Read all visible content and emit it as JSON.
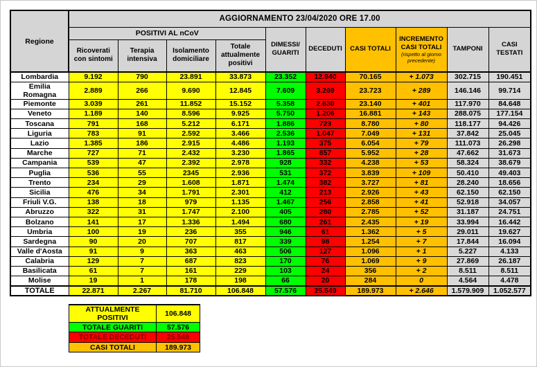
{
  "title": "AGGIORNAMENTO 23/04/2020 ORE 17.00",
  "columns": {
    "regione": "Regione",
    "positivi_group": "POSITIVI AL nCoV",
    "ricoverati": "Ricoverati con sintomi",
    "terapia": "Terapia intensiva",
    "isolamento": "Isolamento domiciliare",
    "totale_positivi": "Totale attualmente positivi",
    "dimessi": "DIMESSI/ GUARITI",
    "deceduti": "DECEDUTI",
    "casi_totali": "CASI TOTALI",
    "incremento": "INCREMENTO CASI  TOTALI",
    "incremento_note": "(rispetto al giorno precedente)",
    "tamponi": "TAMPONI",
    "casi_testati": "CASI TESTATI"
  },
  "rows": [
    [
      "Lombardia",
      "9.192",
      "790",
      "23.891",
      "33.873",
      "23.352",
      "12.940",
      "70.165",
      "+ 1.073",
      "302.715",
      "190.451"
    ],
    [
      "Emilia Romagna",
      "2.889",
      "266",
      "9.690",
      "12.845",
      "7.609",
      "3.269",
      "23.723",
      "+ 289",
      "146.146",
      "99.714"
    ],
    [
      "Piemonte",
      "3.039",
      "261",
      "11.852",
      "15.152",
      "5.358",
      "2.630",
      "23.140",
      "+ 401",
      "117.970",
      "84.648"
    ],
    [
      "Veneto",
      "1.189",
      "140",
      "8.596",
      "9.925",
      "5.750",
      "1.206",
      "16.881",
      "+ 143",
      "288.075",
      "177.154"
    ],
    [
      "Toscana",
      "791",
      "168",
      "5.212",
      "6.171",
      "1.886",
      "723",
      "8.780",
      "+ 80",
      "118.177",
      "94.426"
    ],
    [
      "Liguria",
      "783",
      "91",
      "2.592",
      "3.466",
      "2.536",
      "1.047",
      "7.049",
      "+ 131",
      "37.842",
      "25.045"
    ],
    [
      "Lazio",
      "1.385",
      "186",
      "2.915",
      "4.486",
      "1.193",
      "375",
      "6.054",
      "+ 79",
      "111.073",
      "26.298"
    ],
    [
      "Marche",
      "727",
      "71",
      "2.432",
      "3.230",
      "1.865",
      "857",
      "5.952",
      "+ 28",
      "47.662",
      "31.673"
    ],
    [
      "Campania",
      "539",
      "47",
      "2.392",
      "2.978",
      "928",
      "332",
      "4.238",
      "+ 53",
      "58.324",
      "38.679"
    ],
    [
      "Puglia",
      "536",
      "55",
      "2345",
      "2.936",
      "531",
      "372",
      "3.839",
      "+ 109",
      "50.410",
      "49.403"
    ],
    [
      "Trento",
      "234",
      "29",
      "1.608",
      "1.871",
      "1.474",
      "382",
      "3.727",
      "+ 81",
      "28.240",
      "18.656"
    ],
    [
      "Sicilia",
      "476",
      "34",
      "1.791",
      "2.301",
      "412",
      "213",
      "2.926",
      "+ 43",
      "62.150",
      "62.150"
    ],
    [
      "Friuli V.G.",
      "138",
      "18",
      "979",
      "1.135",
      "1.467",
      "256",
      "2.858",
      "+ 41",
      "52.918",
      "34.057"
    ],
    [
      "Abruzzo",
      "322",
      "31",
      "1.747",
      "2.100",
      "405",
      "280",
      "2.785",
      "+ 52",
      "31.187",
      "24.751"
    ],
    [
      "Bolzano",
      "141",
      "17",
      "1.336",
      "1.494",
      "680",
      "261",
      "2.435",
      "+ 19",
      "33.994",
      "16.442"
    ],
    [
      "Umbria",
      "100",
      "19",
      "236",
      "355",
      "946",
      "61",
      "1.362",
      "+ 5",
      "29.011",
      "19.627"
    ],
    [
      "Sardegna",
      "90",
      "20",
      "707",
      "817",
      "339",
      "98",
      "1.254",
      "+ 7",
      "17.844",
      "16.094"
    ],
    [
      "Valle d'Aosta",
      "91",
      "9",
      "363",
      "463",
      "506",
      "127",
      "1.096",
      "+ 1",
      "5.227",
      "4.133"
    ],
    [
      "Calabria",
      "129",
      "7",
      "687",
      "823",
      "170",
      "76",
      "1.069",
      "+ 9",
      "27.869",
      "26.187"
    ],
    [
      "Basilicata",
      "61",
      "7",
      "161",
      "229",
      "103",
      "24",
      "356",
      "+ 2",
      "8.511",
      "8.511"
    ],
    [
      "Molise",
      "19",
      "1",
      "178",
      "198",
      "66",
      "20",
      "284",
      "0",
      "4.564",
      "4.478"
    ]
  ],
  "totale": [
    "TOTALE",
    "22.871",
    "2.267",
    "81.710",
    "106.848",
    "57.576",
    "25.549",
    "189.973",
    "+ 2.646",
    "1.579.909",
    "1.052.577"
  ],
  "legend": [
    {
      "label": "ATTUALMENTE POSITIVI",
      "value": "106.848",
      "color": "#ffff00",
      "text_color": "#000000"
    },
    {
      "label": "TOTALE GUARITI",
      "value": "57.576",
      "color": "#00ff00",
      "text_color": "#000000"
    },
    {
      "label": "TOTALE DECEDUTI",
      "value": "25.549",
      "color": "#ff0000",
      "text_color": "#7d0000"
    },
    {
      "label": "CASI TOTALI",
      "value": "189.973",
      "color": "#ffc000",
      "text_color": "#000000"
    }
  ],
  "colors": {
    "yellow": "#ffff00",
    "green": "#00ff00",
    "red": "#ff0000",
    "red_text": "#7d0000",
    "orange": "#ffc000",
    "gray_cell": "#d9d9d9",
    "gray_header": "#d5d5d5"
  }
}
